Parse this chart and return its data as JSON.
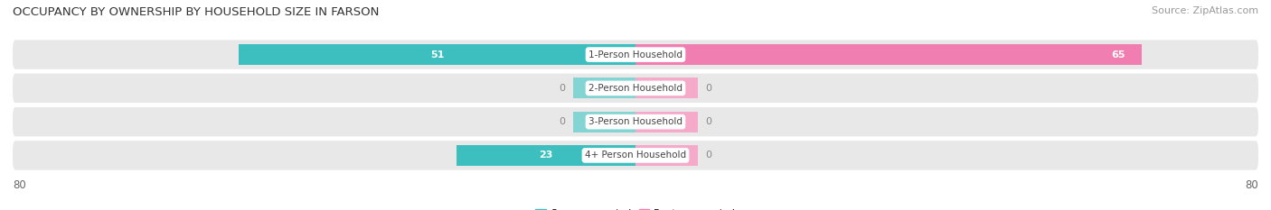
{
  "title": "OCCUPANCY BY OWNERSHIP BY HOUSEHOLD SIZE IN FARSON",
  "source": "Source: ZipAtlas.com",
  "categories": [
    "1-Person Household",
    "2-Person Household",
    "3-Person Household",
    "4+ Person Household"
  ],
  "owner_values": [
    51,
    0,
    0,
    23
  ],
  "renter_values": [
    65,
    0,
    0,
    0
  ],
  "owner_color": "#3DBFBF",
  "renter_color": "#F07EB0",
  "owner_stub_color": "#85D4D4",
  "renter_stub_color": "#F5AACA",
  "axis_limit": 80,
  "row_bg_color": "#e8e8e8",
  "fig_bg": "#ffffff",
  "label_pill_color": "#ffffff",
  "title_fontsize": 9.5,
  "source_fontsize": 8,
  "value_fontsize": 8,
  "cat_fontsize": 7.5,
  "legend_fontsize": 8,
  "stub_size": 8
}
